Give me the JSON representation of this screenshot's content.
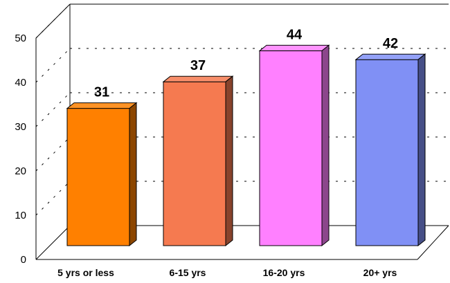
{
  "chart_data": {
    "type": "bar",
    "categories": [
      "5 yrs or less",
      "6-15 yrs",
      "16-20 yrs",
      "20+ yrs"
    ],
    "values": [
      31,
      37,
      44,
      42
    ],
    "data_labels": [
      "31",
      "37",
      "44",
      "42"
    ],
    "y_ticks": [
      "0",
      "10",
      "20",
      "30",
      "40",
      "50"
    ],
    "ylim": [
      0,
      50
    ],
    "grid": true,
    "style": "3d",
    "colors": [
      "#FF8000",
      "#F57A50",
      "#FF80FF",
      "#8090F5"
    ]
  }
}
